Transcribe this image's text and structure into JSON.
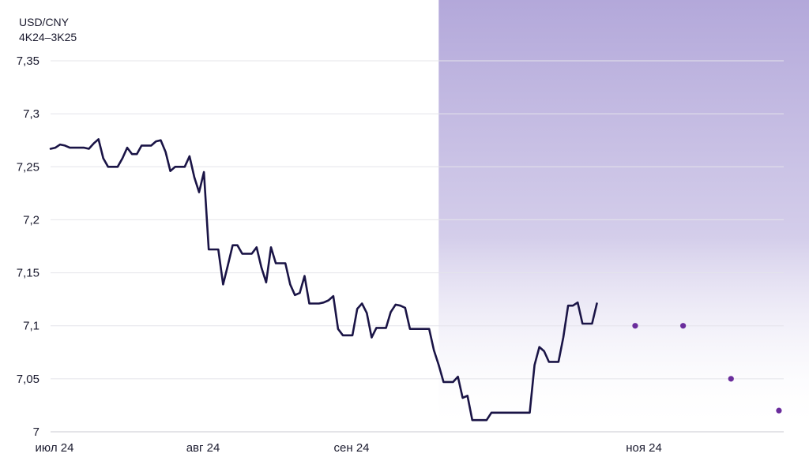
{
  "chart_data": {
    "type": "line",
    "title": "USD/CNY",
    "subtitle": "4K24–3K25",
    "xlabel": "",
    "ylabel": "",
    "ylim": [
      7.0,
      7.35
    ],
    "y_ticks": [
      7.35,
      7.3,
      7.25,
      7.2,
      7.15,
      7.1,
      7.05,
      7.0
    ],
    "y_tick_labels": [
      "7,35",
      "7,3",
      "7,25",
      "7,2",
      "7,15",
      "7,1",
      "7,05",
      "7"
    ],
    "x_tick_labels": [
      "июл 24",
      "авг 24",
      "сен 24",
      "ноя 24"
    ],
    "x_tick_positions": [
      0,
      31,
      62,
      123
    ],
    "grid": true,
    "forecast_band_start": 81,
    "colors": {
      "line": "#1a1446",
      "forecast_point": "#6a2c9c",
      "band_top": "#b3a8da"
    },
    "series": [
      {
        "values": [
          [
            0,
            7.267
          ],
          [
            1,
            7.268
          ],
          [
            2,
            7.271
          ],
          [
            3,
            7.27
          ],
          [
            4,
            7.268
          ],
          [
            5,
            7.268
          ],
          [
            6,
            7.268
          ],
          [
            7,
            7.268
          ],
          [
            8,
            7.267
          ],
          [
            9,
            7.272
          ],
          [
            10,
            7.276
          ],
          [
            11,
            7.258
          ],
          [
            12,
            7.25
          ],
          [
            13,
            7.25
          ],
          [
            14,
            7.25
          ],
          [
            15,
            7.258
          ],
          [
            16,
            7.268
          ],
          [
            17,
            7.262
          ],
          [
            18,
            7.262
          ],
          [
            19,
            7.27
          ],
          [
            20,
            7.27
          ],
          [
            21,
            7.27
          ],
          [
            22,
            7.274
          ],
          [
            23,
            7.275
          ],
          [
            24,
            7.264
          ],
          [
            25,
            7.246
          ],
          [
            26,
            7.25
          ],
          [
            27,
            7.25
          ],
          [
            28,
            7.25
          ],
          [
            29,
            7.26
          ],
          [
            30,
            7.24
          ],
          [
            31,
            7.226
          ],
          [
            32,
            7.245
          ],
          [
            33,
            7.172
          ],
          [
            34,
            7.172
          ],
          [
            35,
            7.172
          ],
          [
            36,
            7.139
          ],
          [
            37,
            7.157
          ],
          [
            38,
            7.176
          ],
          [
            39,
            7.176
          ],
          [
            40,
            7.168
          ],
          [
            41,
            7.168
          ],
          [
            42,
            7.168
          ],
          [
            43,
            7.174
          ],
          [
            44,
            7.155
          ],
          [
            45,
            7.141
          ],
          [
            46,
            7.174
          ],
          [
            47,
            7.159
          ],
          [
            48,
            7.159
          ],
          [
            49,
            7.159
          ],
          [
            50,
            7.139
          ],
          [
            51,
            7.129
          ],
          [
            52,
            7.131
          ],
          [
            53,
            7.147
          ],
          [
            54,
            7.121
          ],
          [
            55,
            7.121
          ],
          [
            56,
            7.121
          ],
          [
            57,
            7.122
          ],
          [
            58,
            7.124
          ],
          [
            59,
            7.128
          ],
          [
            60,
            7.097
          ],
          [
            61,
            7.091
          ],
          [
            62,
            7.091
          ],
          [
            63,
            7.091
          ],
          [
            64,
            7.116
          ],
          [
            65,
            7.121
          ],
          [
            66,
            7.112
          ],
          [
            67,
            7.089
          ],
          [
            68,
            7.098
          ],
          [
            69,
            7.098
          ],
          [
            70,
            7.098
          ],
          [
            71,
            7.113
          ],
          [
            72,
            7.12
          ],
          [
            73,
            7.119
          ],
          [
            74,
            7.117
          ],
          [
            75,
            7.097
          ],
          [
            76,
            7.097
          ],
          [
            77,
            7.097
          ],
          [
            78,
            7.097
          ],
          [
            79,
            7.097
          ],
          [
            80,
            7.077
          ],
          [
            81,
            7.063
          ],
          [
            82,
            7.047
          ],
          [
            83,
            7.047
          ],
          [
            84,
            7.047
          ],
          [
            85,
            7.052
          ],
          [
            86,
            7.032
          ],
          [
            87,
            7.034
          ],
          [
            88,
            7.011
          ],
          [
            89,
            7.011
          ],
          [
            90,
            7.011
          ],
          [
            91,
            7.011
          ],
          [
            92,
            7.018
          ],
          [
            93,
            7.018
          ],
          [
            94,
            7.018
          ],
          [
            95,
            7.018
          ],
          [
            96,
            7.018
          ],
          [
            97,
            7.018
          ],
          [
            98,
            7.018
          ],
          [
            99,
            7.018
          ],
          [
            100,
            7.018
          ],
          [
            101,
            7.063
          ],
          [
            102,
            7.08
          ],
          [
            103,
            7.076
          ],
          [
            104,
            7.066
          ],
          [
            105,
            7.066
          ],
          [
            106,
            7.066
          ],
          [
            107,
            7.089
          ],
          [
            108,
            7.119
          ],
          [
            109,
            7.119
          ],
          [
            110,
            7.122
          ],
          [
            111,
            7.102
          ],
          [
            112,
            7.102
          ],
          [
            113,
            7.102
          ],
          [
            114,
            7.121
          ]
        ]
      },
      {
        "values": [
          [
            122,
            7.1
          ],
          [
            132,
            7.1
          ],
          [
            142,
            7.05
          ],
          [
            152,
            7.02
          ]
        ]
      }
    ]
  }
}
